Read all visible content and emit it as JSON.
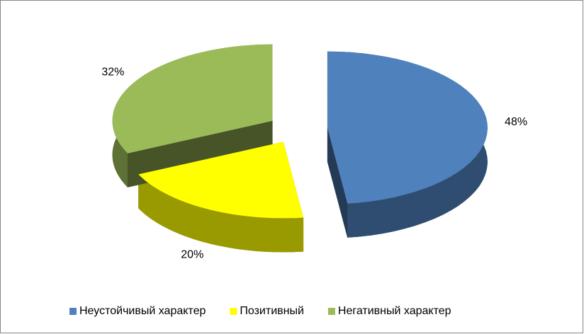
{
  "chart_data": {
    "type": "pie3d",
    "categories": [
      "Неустойчивый характер",
      "Позитивный",
      "Негативный характер"
    ],
    "values": [
      48,
      20,
      32
    ],
    "value_labels": [
      "48%",
      "20%",
      "32%"
    ],
    "colors": [
      "#4f81bd",
      "#ffff00",
      "#9bbb59"
    ],
    "legend": "bottom"
  }
}
